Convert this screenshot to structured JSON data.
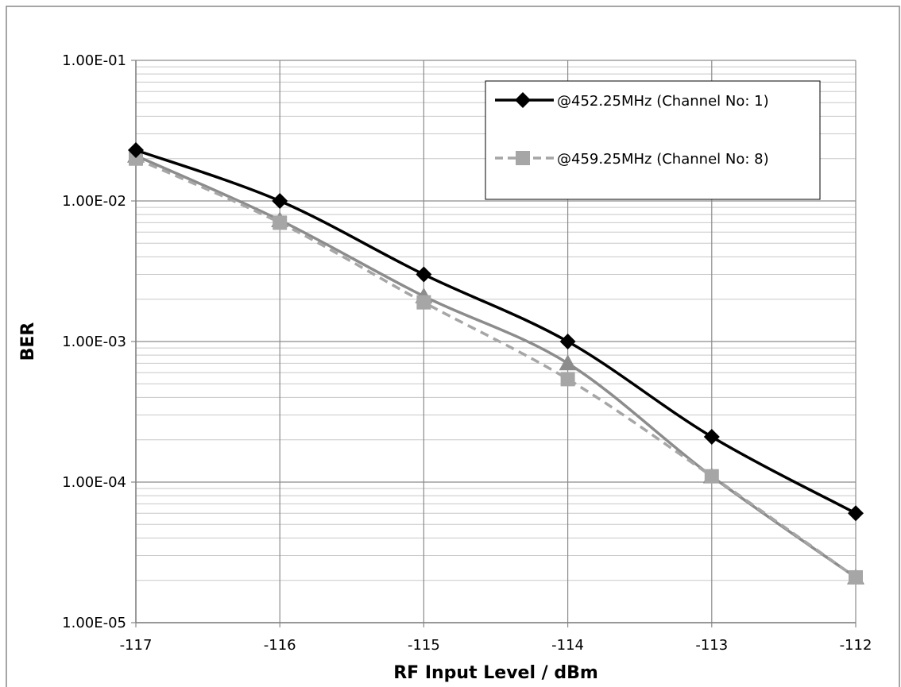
{
  "chart_data": {
    "type": "line",
    "xlabel": "RF Input Level / dBm",
    "ylabel": "BER",
    "y_scale": "log",
    "xlim": [
      -117,
      -112
    ],
    "ylim": [
      1e-05,
      0.1
    ],
    "x_ticks": [
      "-117",
      "-116",
      "-115",
      "-114",
      "-113",
      "-112"
    ],
    "y_ticks": [
      "1.00E-05",
      "1.00E-04",
      "1.00E-03",
      "1.00E-02",
      "1.00E-01"
    ],
    "grid": true,
    "legend_position": "top-right",
    "x": [
      -117,
      -116,
      -115,
      -114,
      -113,
      -112
    ],
    "series": [
      {
        "name": "@452.25MHz (Channel No: 1)",
        "values": [
          0.023,
          0.01,
          0.003,
          0.001,
          0.00021,
          6e-05
        ],
        "color": "#000000",
        "marker": "diamond",
        "dash": "solid"
      },
      {
        "name": "",
        "values": [
          0.021,
          0.0073,
          0.0021,
          0.0007,
          0.00011,
          2.1e-05
        ],
        "color": "#8c8c8c",
        "marker": "triangle",
        "dash": "solid"
      },
      {
        "name": "@459.25MHz (Channel No: 8)",
        "values": [
          0.02,
          0.007,
          0.0019,
          0.00054,
          0.00011,
          2.1e-05
        ],
        "color": "#a6a6a6",
        "marker": "square",
        "dash": "dashed"
      }
    ]
  }
}
